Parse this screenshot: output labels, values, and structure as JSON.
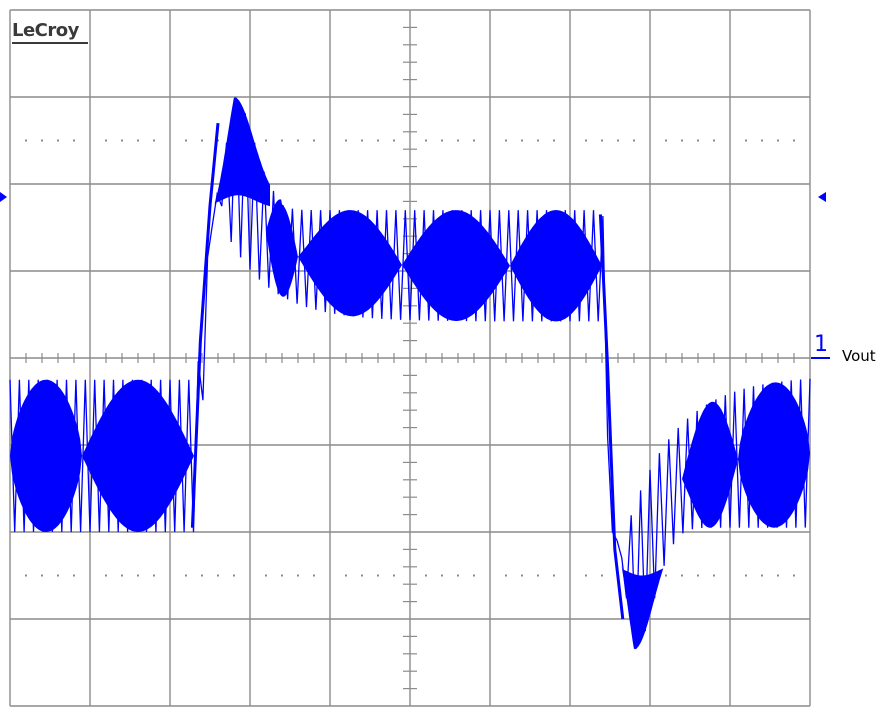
{
  "brand": "LeCroy",
  "chart_data": {
    "type": "line",
    "title": "",
    "xlabel": "",
    "ylabel": "",
    "grid": true,
    "xlim": [
      -5,
      5
    ],
    "ylim": [
      -4,
      4
    ],
    "x_divisions": 10,
    "y_divisions": 8,
    "channel": {
      "number": "1",
      "label": "Vout",
      "ground_level_div": 0
    },
    "trigger_level_div": 1.85,
    "series": [
      {
        "name": "Vout",
        "color": "#0000ff",
        "ripple_cycles_per_div": 8.5,
        "segments": [
          {
            "from_div": -5.0,
            "to_div": -2.7,
            "level_low": -2.0,
            "level_high": -0.25,
            "beat_nodes_div": [
              -4.1,
              -2.7
            ]
          },
          {
            "from_div": -2.7,
            "to_div": -2.45,
            "transition": "rise",
            "level_low": -2.0,
            "level_high": 1.6
          },
          {
            "from_div": -2.45,
            "to_div": -1.8,
            "overshoot_peak": 2.95,
            "envelope_low_peak": 1.75
          },
          {
            "from_div": -1.8,
            "to_div": 2.4,
            "level_low": 0.4,
            "level_high": 1.7,
            "beat_nodes_div": [
              -1.4,
              -0.1,
              1.25
            ]
          },
          {
            "from_div": 2.4,
            "to_div": 2.55,
            "transition": "fall",
            "level_low": -2.5,
            "level_high": 1.7
          },
          {
            "from_div": 2.55,
            "to_div": 3.4,
            "undershoot_peak": -3.35,
            "envelope_high_peak": -2.55
          },
          {
            "from_div": 3.4,
            "to_div": 5.0,
            "level_low": -1.95,
            "level_high": -0.2,
            "beat_nodes_div": [
              4.1
            ]
          }
        ]
      }
    ]
  }
}
